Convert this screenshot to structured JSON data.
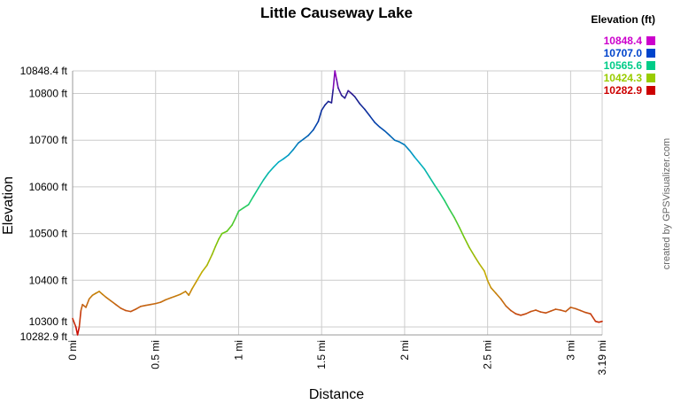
{
  "chart_data": {
    "type": "line",
    "title": "Little Causeway Lake",
    "xlabel": "Distance",
    "ylabel": "Elevation",
    "credit": "created by GPSVisualizer.com",
    "x_unit": "mi",
    "y_unit": "ft",
    "xlim": [
      0,
      3.19
    ],
    "ylim": [
      10282.9,
      10848.4
    ],
    "grid": true,
    "x_ticks": [
      {
        "value": 0,
        "label": "0 mi"
      },
      {
        "value": 0.5,
        "label": "0.5 mi"
      },
      {
        "value": 1,
        "label": "1 mi"
      },
      {
        "value": 1.5,
        "label": "1.5 mi"
      },
      {
        "value": 2,
        "label": "2 mi"
      },
      {
        "value": 2.5,
        "label": "2.5 mi"
      },
      {
        "value": 3,
        "label": "3 mi"
      },
      {
        "value": 3.19,
        "label": "3.19 mi"
      }
    ],
    "y_ticks": [
      {
        "value": 10282.9,
        "label": "10282.9 ft"
      },
      {
        "value": 10300,
        "label": "10300 ft"
      },
      {
        "value": 10400,
        "label": "10400 ft"
      },
      {
        "value": 10500,
        "label": "10500 ft"
      },
      {
        "value": 10600,
        "label": "10600 ft"
      },
      {
        "value": 10700,
        "label": "10700 ft"
      },
      {
        "value": 10800,
        "label": "10800 ft"
      },
      {
        "value": 10848.4,
        "label": "10848.4 ft"
      }
    ],
    "legend": {
      "title": "Elevation (ft)",
      "placement": "top-right",
      "entries": [
        {
          "label": "10848.4",
          "color": "#cc00cc"
        },
        {
          "label": "10707.0",
          "color": "#0044cc"
        },
        {
          "label": "10565.6",
          "color": "#00cc88"
        },
        {
          "label": "10424.3",
          "color": "#99cc00"
        },
        {
          "label": "10282.9",
          "color": "#cc0000"
        }
      ]
    },
    "series": [
      {
        "x": [
          0,
          0.02,
          0.03,
          0.04,
          0.05,
          0.06,
          0.08,
          0.1,
          0.12,
          0.14,
          0.16,
          0.18,
          0.2,
          0.23,
          0.26,
          0.29,
          0.32,
          0.35,
          0.38,
          0.41,
          0.44,
          0.47,
          0.5,
          0.53,
          0.56,
          0.59,
          0.62,
          0.65,
          0.68,
          0.7,
          0.72,
          0.75,
          0.78,
          0.81,
          0.84,
          0.86,
          0.88,
          0.9,
          0.93,
          0.96,
          0.98,
          1,
          1.03,
          1.06,
          1.09,
          1.12,
          1.15,
          1.18,
          1.21,
          1.24,
          1.27,
          1.3,
          1.33,
          1.36,
          1.39,
          1.42,
          1.45,
          1.48,
          1.5,
          1.52,
          1.54,
          1.56,
          1.57,
          1.58,
          1.59,
          1.6,
          1.62,
          1.64,
          1.66,
          1.68,
          1.7,
          1.73,
          1.76,
          1.79,
          1.82,
          1.85,
          1.88,
          1.91,
          1.94,
          1.97,
          2,
          2.03,
          2.06,
          2.09,
          2.12,
          2.15,
          2.18,
          2.21,
          2.24,
          2.27,
          2.3,
          2.33,
          2.36,
          2.39,
          2.42,
          2.45,
          2.48,
          2.5,
          2.52,
          2.55,
          2.58,
          2.61,
          2.64,
          2.67,
          2.7,
          2.73,
          2.76,
          2.79,
          2.82,
          2.85,
          2.88,
          2.91,
          2.94,
          2.97,
          3,
          3.03,
          3.06,
          3.09,
          3.12,
          3.15,
          3.17,
          3.19
        ],
        "values": [
          10318,
          10300,
          10283,
          10300,
          10335,
          10348,
          10342,
          10360,
          10368,
          10372,
          10376,
          10370,
          10364,
          10356,
          10348,
          10340,
          10335,
          10333,
          10338,
          10344,
          10346,
          10348,
          10350,
          10353,
          10358,
          10362,
          10366,
          10370,
          10376,
          10368,
          10382,
          10400,
          10418,
          10432,
          10455,
          10472,
          10488,
          10500,
          10505,
          10518,
          10532,
          10548,
          10555,
          10562,
          10580,
          10598,
          10615,
          10630,
          10642,
          10653,
          10660,
          10668,
          10680,
          10694,
          10702,
          10710,
          10722,
          10740,
          10764,
          10775,
          10783,
          10780,
          10810,
          10848.4,
          10830,
          10812,
          10796,
          10790,
          10806,
          10800,
          10793,
          10778,
          10766,
          10752,
          10738,
          10728,
          10720,
          10710,
          10700,
          10696,
          10690,
          10678,
          10664,
          10651,
          10638,
          10621,
          10604,
          10588,
          10571,
          10552,
          10534,
          10513,
          10491,
          10470,
          10452,
          10435,
          10420,
          10399,
          10384,
          10372,
          10360,
          10345,
          10335,
          10328,
          10325,
          10328,
          10333,
          10336,
          10332,
          10330,
          10334,
          10338,
          10336,
          10333,
          10342,
          10339,
          10335,
          10331,
          10328,
          10312,
          10310,
          10312
        ]
      }
    ]
  }
}
